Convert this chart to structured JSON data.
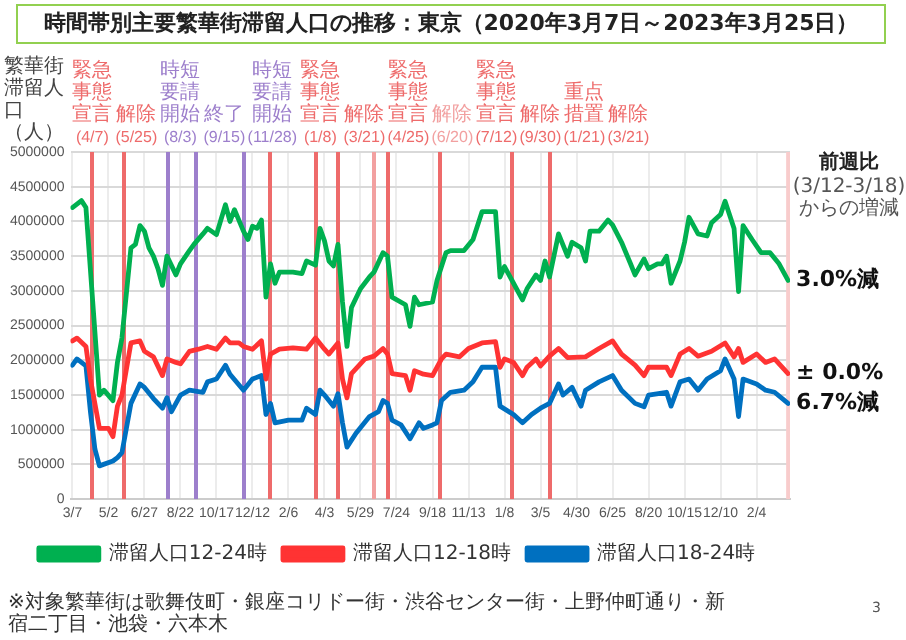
{
  "chart_data": {
    "type": "line",
    "title": "時間帯別主要繁華街滞留人口の推移：東京（2020年3月7日～2023年3月25日）",
    "ylabel": "繁華街滞留人口（人）",
    "xlim": [
      "2020-03-04",
      "2023-03-28"
    ],
    "ylim": [
      0,
      5000000
    ],
    "yticks": [
      0,
      500000,
      1000000,
      1500000,
      2000000,
      2500000,
      3000000,
      3500000,
      4000000,
      4500000,
      5000000
    ],
    "xticks": [
      {
        "value": "2020-03-07",
        "label": "3/7"
      },
      {
        "value": "2020-05-02",
        "label": "5/2"
      },
      {
        "value": "2020-06-27",
        "label": "6/27"
      },
      {
        "value": "2020-08-22",
        "label": "8/22"
      },
      {
        "value": "2020-10-17",
        "label": "10/17"
      },
      {
        "value": "2020-12-12",
        "label": "12/12"
      },
      {
        "value": "2021-02-06",
        "label": "2/6"
      },
      {
        "value": "2021-04-03",
        "label": "4/3"
      },
      {
        "value": "2021-05-29",
        "label": "5/29"
      },
      {
        "value": "2021-07-24",
        "label": "7/24"
      },
      {
        "value": "2021-09-18",
        "label": "9/18"
      },
      {
        "value": "2021-11-13",
        "label": "11/13"
      },
      {
        "value": "2022-01-08",
        "label": "1/8"
      },
      {
        "value": "2022-03-05",
        "label": "3/5"
      },
      {
        "value": "2022-04-30",
        "label": "4/30"
      },
      {
        "value": "2022-06-25",
        "label": "6/25"
      },
      {
        "value": "2022-08-20",
        "label": "8/20"
      },
      {
        "value": "2022-10-15",
        "label": "10/15"
      },
      {
        "value": "2022-12-10",
        "label": "12/10"
      },
      {
        "value": "2023-02-04",
        "label": "2/4"
      }
    ],
    "grid": true,
    "legend": "bottom",
    "marker": "none",
    "series": [
      {
        "name": "滞留人口12-24時",
        "color": "#00b050",
        "x": [
          "2020-03-07",
          "2020-03-21",
          "2020-03-28",
          "2020-04-18",
          "2020-04-25",
          "2020-05-09",
          "2020-05-16",
          "2020-05-23",
          "2020-06-06",
          "2020-06-13",
          "2020-06-20",
          "2020-06-27",
          "2020-07-04",
          "2020-07-11",
          "2020-07-18",
          "2020-07-25",
          "2020-08-01",
          "2020-08-15",
          "2020-08-22",
          "2020-09-05",
          "2020-09-12",
          "2020-09-26",
          "2020-10-03",
          "2020-10-17",
          "2020-10-31",
          "2020-11-07",
          "2020-11-14",
          "2020-11-28",
          "2020-12-05",
          "2020-12-12",
          "2020-12-19",
          "2020-12-26",
          "2021-01-02",
          "2021-01-09",
          "2021-01-16",
          "2021-01-23",
          "2021-02-13",
          "2021-02-27",
          "2021-03-06",
          "2021-03-20",
          "2021-03-27",
          "2021-04-03",
          "2021-04-10",
          "2021-04-17",
          "2021-04-24",
          "2021-05-01",
          "2021-05-08",
          "2021-05-15",
          "2021-05-29",
          "2021-06-12",
          "2021-06-19",
          "2021-07-03",
          "2021-07-10",
          "2021-07-17",
          "2021-08-07",
          "2021-08-14",
          "2021-08-21",
          "2021-08-28",
          "2021-09-18",
          "2021-09-25",
          "2021-10-02",
          "2021-10-09",
          "2021-10-16",
          "2021-11-06",
          "2021-11-20",
          "2021-12-04",
          "2021-12-25",
          "2022-01-01",
          "2022-01-08",
          "2022-01-22",
          "2022-02-05",
          "2022-02-12",
          "2022-02-26",
          "2022-03-05",
          "2022-03-12",
          "2022-03-19",
          "2022-04-02",
          "2022-04-16",
          "2022-04-23",
          "2022-05-07",
          "2022-05-14",
          "2022-05-21",
          "2022-06-04",
          "2022-06-18",
          "2022-06-25",
          "2022-07-09",
          "2022-07-23",
          "2022-07-30",
          "2022-08-13",
          "2022-08-20",
          "2022-09-03",
          "2022-09-10",
          "2022-09-17",
          "2022-09-24",
          "2022-10-08",
          "2022-10-15",
          "2022-10-22",
          "2022-11-05",
          "2022-11-19",
          "2022-11-26",
          "2022-12-10",
          "2022-12-17",
          "2022-12-31",
          "2023-01-07",
          "2023-01-14",
          "2023-01-28",
          "2023-02-11",
          "2023-02-25",
          "2023-03-11",
          "2023-03-25"
        ],
        "values": [
          4200000,
          4300000,
          4200000,
          1500000,
          1570000,
          1420000,
          1970000,
          2320000,
          3620000,
          3670000,
          3940000,
          3860000,
          3620000,
          3500000,
          3320000,
          3080000,
          3500000,
          3230000,
          3390000,
          3580000,
          3670000,
          3820000,
          3900000,
          3810000,
          4240000,
          4000000,
          4170000,
          3860000,
          3740000,
          3930000,
          3900000,
          4020000,
          2910000,
          3390000,
          3110000,
          3270000,
          3270000,
          3250000,
          3430000,
          3370000,
          3900000,
          3720000,
          3430000,
          3360000,
          3670000,
          2840000,
          2200000,
          2760000,
          3030000,
          3200000,
          3270000,
          3550000,
          3500000,
          2910000,
          2800000,
          2490000,
          2910000,
          2800000,
          2840000,
          3150000,
          3350000,
          3550000,
          3580000,
          3580000,
          3740000,
          4140000,
          4140000,
          3200000,
          3350000,
          3110000,
          2870000,
          3030000,
          3230000,
          3150000,
          3430000,
          3200000,
          3820000,
          3500000,
          3700000,
          3620000,
          3430000,
          3860000,
          3860000,
          4020000,
          3950000,
          3700000,
          3390000,
          3230000,
          3460000,
          3320000,
          3390000,
          3390000,
          3500000,
          3110000,
          3430000,
          3700000,
          4060000,
          3820000,
          3790000,
          3980000,
          4100000,
          4290000,
          3900000,
          2990000,
          3940000,
          3740000,
          3550000,
          3550000,
          3390000,
          3150000
        ]
      },
      {
        "name": "滞留人口12-18時",
        "color": "#ff3333",
        "x": [
          "2020-03-07",
          "2020-03-14",
          "2020-03-28",
          "2020-04-04",
          "2020-04-18",
          "2020-05-02",
          "2020-05-09",
          "2020-05-16",
          "2020-05-23",
          "2020-06-06",
          "2020-06-20",
          "2020-06-27",
          "2020-07-11",
          "2020-07-25",
          "2020-08-01",
          "2020-08-15",
          "2020-08-22",
          "2020-09-05",
          "2020-09-19",
          "2020-10-03",
          "2020-10-17",
          "2020-10-31",
          "2020-11-07",
          "2020-11-21",
          "2020-11-28",
          "2020-12-12",
          "2020-12-26",
          "2021-01-02",
          "2021-01-09",
          "2021-01-23",
          "2021-02-13",
          "2021-03-06",
          "2021-03-20",
          "2021-04-03",
          "2021-04-10",
          "2021-04-24",
          "2021-05-01",
          "2021-05-08",
          "2021-05-15",
          "2021-06-05",
          "2021-06-19",
          "2021-07-03",
          "2021-07-10",
          "2021-07-17",
          "2021-08-07",
          "2021-08-14",
          "2021-08-21",
          "2021-09-04",
          "2021-09-18",
          "2021-10-02",
          "2021-10-09",
          "2021-10-30",
          "2021-11-13",
          "2021-12-04",
          "2021-12-25",
          "2022-01-01",
          "2022-01-08",
          "2022-01-22",
          "2022-02-05",
          "2022-02-12",
          "2022-02-26",
          "2022-03-05",
          "2022-03-19",
          "2022-04-02",
          "2022-04-16",
          "2022-05-14",
          "2022-06-04",
          "2022-06-25",
          "2022-07-09",
          "2022-07-30",
          "2022-08-13",
          "2022-08-20",
          "2022-09-17",
          "2022-09-24",
          "2022-10-08",
          "2022-10-22",
          "2022-11-05",
          "2022-11-26",
          "2022-12-17",
          "2022-12-31",
          "2023-01-07",
          "2023-01-14",
          "2023-02-04",
          "2023-02-18",
          "2023-03-04",
          "2023-03-25"
        ],
        "values": [
          2280000,
          2320000,
          2200000,
          1730000,
          1020000,
          1020000,
          900000,
          1340000,
          1500000,
          2250000,
          2280000,
          2130000,
          2050000,
          1780000,
          2020000,
          1970000,
          1950000,
          2130000,
          2160000,
          2200000,
          2160000,
          2320000,
          2250000,
          2250000,
          2200000,
          2160000,
          2280000,
          1730000,
          2090000,
          2160000,
          2180000,
          2160000,
          2320000,
          2160000,
          2090000,
          2250000,
          1730000,
          1460000,
          1810000,
          2020000,
          2060000,
          2170000,
          2090000,
          1810000,
          1780000,
          1570000,
          1850000,
          1800000,
          1780000,
          2020000,
          2090000,
          2050000,
          2170000,
          2250000,
          2270000,
          1900000,
          2020000,
          1970000,
          1780000,
          1900000,
          2020000,
          1920000,
          2060000,
          2170000,
          2040000,
          2050000,
          2170000,
          2280000,
          2090000,
          1930000,
          1780000,
          1900000,
          1900000,
          1780000,
          2090000,
          2170000,
          2060000,
          2130000,
          2250000,
          2050000,
          2170000,
          1970000,
          2090000,
          1970000,
          2020000,
          1810000
        ]
      },
      {
        "name": "滞留人口18-24時",
        "color": "#0070c0",
        "x": [
          "2020-03-07",
          "2020-03-14",
          "2020-03-28",
          "2020-04-04",
          "2020-04-11",
          "2020-04-18",
          "2020-05-09",
          "2020-05-16",
          "2020-05-23",
          "2020-06-06",
          "2020-06-20",
          "2020-06-27",
          "2020-07-11",
          "2020-07-25",
          "2020-08-01",
          "2020-08-08",
          "2020-08-22",
          "2020-09-05",
          "2020-09-26",
          "2020-10-03",
          "2020-10-17",
          "2020-10-31",
          "2020-11-07",
          "2020-11-28",
          "2020-12-12",
          "2020-12-26",
          "2021-01-02",
          "2021-01-09",
          "2021-01-16",
          "2021-02-06",
          "2021-02-27",
          "2021-03-06",
          "2021-03-20",
          "2021-03-27",
          "2021-04-03",
          "2021-04-17",
          "2021-04-24",
          "2021-05-01",
          "2021-05-08",
          "2021-05-22",
          "2021-06-12",
          "2021-06-26",
          "2021-07-03",
          "2021-07-10",
          "2021-07-17",
          "2021-07-31",
          "2021-08-14",
          "2021-08-28",
          "2021-09-04",
          "2021-09-18",
          "2021-09-25",
          "2021-10-02",
          "2021-10-16",
          "2021-11-06",
          "2021-11-20",
          "2021-12-04",
          "2021-12-25",
          "2022-01-01",
          "2022-01-22",
          "2022-02-05",
          "2022-02-19",
          "2022-03-05",
          "2022-03-19",
          "2022-04-02",
          "2022-04-09",
          "2022-04-23",
          "2022-05-07",
          "2022-05-14",
          "2022-06-04",
          "2022-06-25",
          "2022-07-09",
          "2022-07-30",
          "2022-08-13",
          "2022-08-20",
          "2022-09-17",
          "2022-09-24",
          "2022-10-08",
          "2022-10-22",
          "2022-11-05",
          "2022-11-19",
          "2022-12-10",
          "2022-12-17",
          "2022-12-31",
          "2023-01-07",
          "2023-01-14",
          "2023-02-04",
          "2023-02-18",
          "2023-03-04",
          "2023-03-25"
        ],
        "values": [
          1930000,
          2020000,
          1920000,
          1260000,
          720000,
          480000,
          550000,
          600000,
          670000,
          1380000,
          1660000,
          1610000,
          1450000,
          1310000,
          1460000,
          1260000,
          1500000,
          1570000,
          1540000,
          1690000,
          1730000,
          1930000,
          1800000,
          1570000,
          1730000,
          1780000,
          1220000,
          1380000,
          1100000,
          1140000,
          1140000,
          1310000,
          1220000,
          1570000,
          1500000,
          1340000,
          1520000,
          1100000,
          750000,
          950000,
          1190000,
          1260000,
          1420000,
          1380000,
          1140000,
          1070000,
          870000,
          1100000,
          1020000,
          1070000,
          1100000,
          1420000,
          1540000,
          1570000,
          1690000,
          1900000,
          1900000,
          1340000,
          1220000,
          1100000,
          1220000,
          1310000,
          1380000,
          1660000,
          1500000,
          1610000,
          1340000,
          1570000,
          1690000,
          1780000,
          1570000,
          1380000,
          1330000,
          1500000,
          1540000,
          1340000,
          1690000,
          1730000,
          1570000,
          1730000,
          1850000,
          2020000,
          1730000,
          1190000,
          1730000,
          1660000,
          1570000,
          1540000,
          1380000
        ]
      }
    ],
    "ref_lines": [
      {
        "axis": "x",
        "value": "2020-04-07",
        "label": "緊急事態宣言(4/7)",
        "color": "#ee6b6b"
      },
      {
        "axis": "x",
        "value": "2020-05-25",
        "label": "解除(5/25)",
        "color": "#ee6b6b"
      },
      {
        "axis": "x",
        "value": "2020-08-03",
        "label": "時短要請開始(8/3)",
        "color": "#9d7fcc"
      },
      {
        "axis": "x",
        "value": "2020-09-15",
        "label": "終了(9/15)",
        "color": "#9d7fcc"
      },
      {
        "axis": "x",
        "value": "2020-11-28",
        "label": "時短要請開始(11/28)",
        "color": "#9d7fcc"
      },
      {
        "axis": "x",
        "value": "2021-01-08",
        "label": "緊急事態宣言(1/8)",
        "color": "#ee6b6b"
      },
      {
        "axis": "x",
        "value": "2021-03-21",
        "label": "解除(3/21)",
        "color": "#ee6b6b"
      },
      {
        "axis": "x",
        "value": "2021-04-25",
        "label": "緊急事態宣言(4/25)",
        "color": "#ee6b6b"
      },
      {
        "axis": "x",
        "value": "2021-06-20",
        "label": "解除(6/20)",
        "color": "#f2a0a0"
      },
      {
        "axis": "x",
        "value": "2021-07-12",
        "label": "緊急事態宣言(7/12)",
        "color": "#ee6b6b"
      },
      {
        "axis": "x",
        "value": "2021-09-30",
        "label": "解除(9/30)",
        "color": "#ee6b6b"
      },
      {
        "axis": "x",
        "value": "2022-01-21",
        "label": "重点措置(1/21)",
        "color": "#ee6b6b"
      },
      {
        "axis": "x",
        "value": "2022-03-21",
        "label": "解除(3/21)",
        "color": "#ee6b6b"
      }
    ],
    "bands": [
      {
        "axis": "x",
        "from": "2023-03-22",
        "to": "2023-03-28",
        "color": "#f8cccc"
      }
    ],
    "annotations": [
      "前週比",
      "(3/12-3/18)からの増減",
      {
        "text": "3.0%減",
        "x": "2023-03-25",
        "y": 3150000
      },
      {
        "text": "± 0.0%",
        "x": "2023-03-25",
        "y": 1810000
      },
      {
        "text": "6.7%減",
        "x": "2023-03-25",
        "y": 1380000
      },
      "※対象繁華街は歌舞伎町・銀座コリドー街・渋谷センター街・上野仲町通り・新宿二丁目・池袋・六本木",
      "3"
    ]
  }
}
